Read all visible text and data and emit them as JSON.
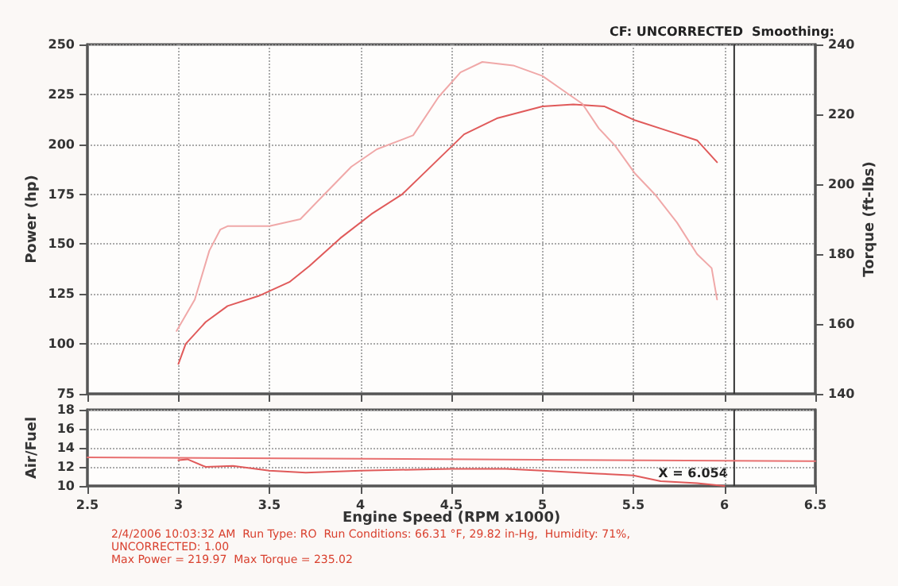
{
  "chart_data": [
    {
      "type": "line",
      "ylabel": "Power (hp)",
      "y2label": "Torque (ft-lbs)",
      "annotations": [
        "CF: UNCORRECTED  Smoothing:"
      ],
      "xlim": [
        2.5,
        6.5
      ],
      "xticks": [
        2.5,
        3,
        3.5,
        4,
        4.5,
        5,
        5.5,
        6,
        6.5
      ],
      "ylim": [
        75,
        250
      ],
      "yticks": [
        75,
        100,
        125,
        150,
        175,
        200,
        225,
        250
      ],
      "y2lim": [
        140,
        240
      ],
      "y2ticks": [
        140,
        160,
        180,
        200,
        220,
        240
      ],
      "tick_labels": "y",
      "grid": true,
      "marker": "none",
      "line_style": "solid",
      "ref_lines": [
        {
          "axis": "x",
          "value": 6.054,
          "color": "#333333"
        }
      ],
      "series": [
        {
          "color": "#e05a5a",
          "x": [
            3.0,
            3.04,
            3.15,
            3.27,
            3.44,
            3.61,
            3.72,
            3.89,
            4.06,
            4.23,
            4.4,
            4.57,
            4.75,
            5.0,
            5.17,
            5.34,
            5.51,
            5.68,
            5.85,
            5.96
          ],
          "values": [
            90,
            100,
            111,
            119,
            124,
            131,
            139,
            153,
            165,
            175,
            190,
            205,
            213,
            219,
            220,
            219,
            212,
            207,
            202,
            191
          ]
        },
        {
          "color": "#f0a8a8",
          "axis": "y2",
          "x": [
            2.99,
            3.09,
            3.17,
            3.23,
            3.27,
            3.38,
            3.5,
            3.67,
            3.8,
            3.95,
            4.09,
            4.29,
            4.43,
            4.55,
            4.67,
            4.84,
            5.0,
            5.11,
            5.22,
            5.31,
            5.4,
            5.51,
            5.62,
            5.74,
            5.85,
            5.93,
            5.96
          ],
          "values": [
            158,
            167,
            181,
            187,
            188,
            188,
            188,
            190,
            197,
            205,
            210,
            214,
            225,
            232,
            235,
            234,
            231,
            227,
            223,
            216,
            211,
            203,
            197,
            189,
            180,
            176,
            167
          ]
        }
      ]
    },
    {
      "type": "line",
      "ylabel": "Air/Fuel",
      "xlabel": "Engine Speed (RPM x1000)",
      "annotations": [
        "2/4/2006 10:03:32 AM  Run Type: RO  Run Conditions: 66.31 °F, 29.82 in-Hg,  Humidity: 71%,",
        "UNCORRECTED: 1.00",
        "Max Power = 219.97  Max Torque = 235.02"
      ],
      "xlim": [
        2.5,
        6.5
      ],
      "xticks": [
        2.5,
        3,
        3.5,
        4,
        4.5,
        5,
        5.5,
        6,
        6.5
      ],
      "ylim": [
        10,
        18
      ],
      "yticks": [
        10,
        12,
        14,
        16,
        18
      ],
      "grid": true,
      "marker": "none",
      "line_style": "solid",
      "ref_lines": [
        {
          "axis": "x",
          "value": 6.054,
          "label": "X = 6.054",
          "color": "#333333"
        }
      ],
      "series": [
        {
          "color": "#e87070",
          "x": [
            2.5,
            6.5
          ],
          "values": [
            13.0,
            12.6
          ]
        },
        {
          "color": "#e05a5a",
          "x": [
            3.0,
            3.05,
            3.15,
            3.3,
            3.5,
            3.7,
            4.0,
            4.5,
            4.8,
            5.0,
            5.3,
            5.5,
            5.65,
            5.85,
            6.0
          ],
          "values": [
            12.7,
            12.8,
            12.0,
            12.1,
            11.6,
            11.4,
            11.6,
            11.8,
            11.8,
            11.6,
            11.3,
            11.1,
            10.5,
            10.3,
            10.0
          ]
        }
      ]
    }
  ]
}
